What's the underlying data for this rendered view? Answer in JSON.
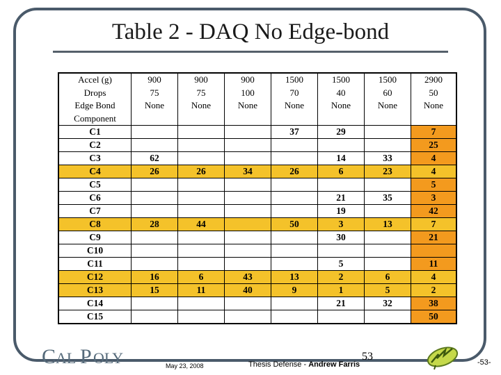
{
  "title": "Table 2 - DAQ No Edge-bond",
  "table": {
    "header_labels": [
      "Accel (g)",
      "Drops",
      "Edge Bond",
      "Component"
    ],
    "columns": [
      {
        "accel": "900",
        "drops": "75",
        "edge_bond": "None"
      },
      {
        "accel": "900",
        "drops": "75",
        "edge_bond": "None"
      },
      {
        "accel": "900",
        "drops": "100",
        "edge_bond": "None"
      },
      {
        "accel": "1500",
        "drops": "70",
        "edge_bond": "None"
      },
      {
        "accel": "1500",
        "drops": "40",
        "edge_bond": "None"
      },
      {
        "accel": "1500",
        "drops": "60",
        "edge_bond": "None"
      },
      {
        "accel": "2900",
        "drops": "50",
        "edge_bond": "None"
      }
    ],
    "rows": [
      {
        "component": "C1",
        "values": [
          "",
          "",
          "",
          "37",
          "29",
          "",
          "7"
        ],
        "highlight": false
      },
      {
        "component": "C2",
        "values": [
          "",
          "",
          "",
          "",
          "",
          "",
          "25"
        ],
        "highlight": false
      },
      {
        "component": "C3",
        "values": [
          "62",
          "",
          "",
          "",
          "14",
          "33",
          "4"
        ],
        "highlight": false
      },
      {
        "component": "C4",
        "values": [
          "26",
          "26",
          "34",
          "26",
          "6",
          "23",
          "4"
        ],
        "highlight": true
      },
      {
        "component": "C5",
        "values": [
          "",
          "",
          "",
          "",
          "",
          "",
          "5"
        ],
        "highlight": false
      },
      {
        "component": "C6",
        "values": [
          "",
          "",
          "",
          "",
          "21",
          "35",
          "3"
        ],
        "highlight": false
      },
      {
        "component": "C7",
        "values": [
          "",
          "",
          "",
          "",
          "19",
          "",
          "42"
        ],
        "highlight": false
      },
      {
        "component": "C8",
        "values": [
          "28",
          "44",
          "",
          "50",
          "3",
          "13",
          "7"
        ],
        "highlight": true
      },
      {
        "component": "C9",
        "values": [
          "",
          "",
          "",
          "",
          "30",
          "",
          "21"
        ],
        "highlight": false
      },
      {
        "component": "C10",
        "values": [
          "",
          "",
          "",
          "",
          "",
          "",
          ""
        ],
        "highlight": false
      },
      {
        "component": "C11",
        "values": [
          "",
          "",
          "",
          "",
          "5",
          "",
          "11"
        ],
        "highlight": false
      },
      {
        "component": "C12",
        "values": [
          "16",
          "6",
          "43",
          "13",
          "2",
          "6",
          "4"
        ],
        "highlight": true
      },
      {
        "component": "C13",
        "values": [
          "15",
          "11",
          "40",
          "9",
          "1",
          "5",
          "2"
        ],
        "highlight": true
      },
      {
        "component": "C14",
        "values": [
          "",
          "",
          "",
          "",
          "21",
          "32",
          "38"
        ],
        "highlight": false
      },
      {
        "component": "C15",
        "values": [
          "",
          "",
          "",
          "",
          "",
          "",
          "50"
        ],
        "highlight": false
      }
    ],
    "highlight_colors": {
      "row": "#f4c22a",
      "last_column": "#f39a1e"
    }
  },
  "footer": {
    "logo_text": "CAL POLY",
    "date": "May 23, 2008",
    "presentation": "Thesis Defense - ",
    "author": "Andrew Farris",
    "slide_number": "53",
    "page_number": "-53-"
  }
}
